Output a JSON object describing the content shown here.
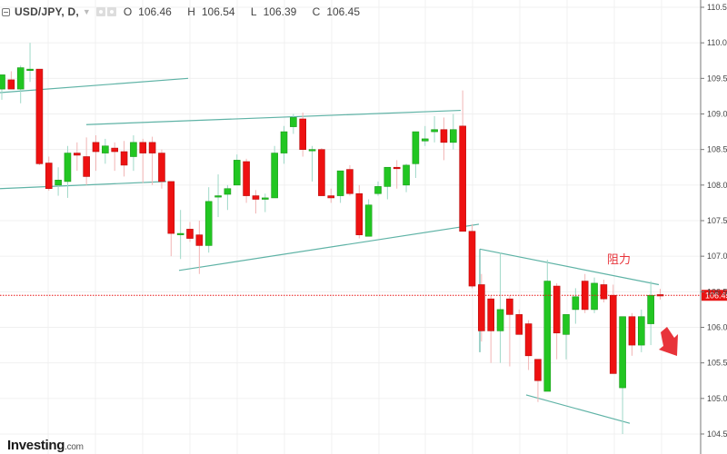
{
  "header": {
    "symbol": "USD/JPY, D,",
    "open_label": "O",
    "open": "106.46",
    "high_label": "H",
    "high": "106.54",
    "low_label": "L",
    "low": "106.39",
    "close_label": "C",
    "close": "106.45",
    "icons": [
      "collapse-icon",
      "dropdown-icon",
      "settings-icon",
      "visibility-icon"
    ]
  },
  "annotation": {
    "text": "阻力",
    "arrow": "down-right-arrow",
    "color": "#e8333a"
  },
  "logo": {
    "name": "Investing",
    "suffix": ".com"
  },
  "colors": {
    "up": "#22c622",
    "down": "#ee1111",
    "trendline": "#5fb3a6",
    "last_price": "#e81414",
    "grid": "#f0f0f0",
    "axis": "#777777"
  },
  "chart_data": {
    "type": "candlestick",
    "title": "USD/JPY, D,",
    "ylabel": "",
    "xlabel": "",
    "ylim": [
      104.5,
      110.5
    ],
    "y_ticks": [
      "110.50",
      "110.00",
      "109.50",
      "109.00",
      "108.50",
      "108.00",
      "107.50",
      "107.00",
      "106.50",
      "106.00",
      "105.50",
      "105.00",
      "104.50"
    ],
    "last_price": "106.45",
    "grid": true,
    "candles": [
      {
        "o": 109.35,
        "h": 109.55,
        "l": 109.2,
        "c": 109.55
      },
      {
        "o": 109.48,
        "h": 109.6,
        "l": 109.35,
        "c": 109.35
      },
      {
        "o": 109.35,
        "h": 109.68,
        "l": 109.15,
        "c": 109.65
      },
      {
        "o": 109.63,
        "h": 110.0,
        "l": 109.45,
        "c": 109.63
      },
      {
        "o": 109.63,
        "h": 109.63,
        "l": 108.28,
        "c": 108.3
      },
      {
        "o": 108.31,
        "h": 108.4,
        "l": 107.92,
        "c": 107.95
      },
      {
        "o": 108.0,
        "h": 108.25,
        "l": 107.85,
        "c": 108.07
      },
      {
        "o": 108.05,
        "h": 108.55,
        "l": 107.82,
        "c": 108.45
      },
      {
        "o": 108.45,
        "h": 108.6,
        "l": 108.2,
        "c": 108.42
      },
      {
        "o": 108.4,
        "h": 108.67,
        "l": 108.0,
        "c": 108.12
      },
      {
        "o": 108.6,
        "h": 108.7,
        "l": 108.2,
        "c": 108.47
      },
      {
        "o": 108.45,
        "h": 108.65,
        "l": 108.3,
        "c": 108.55
      },
      {
        "o": 108.52,
        "h": 108.6,
        "l": 108.2,
        "c": 108.47
      },
      {
        "o": 108.47,
        "h": 108.62,
        "l": 108.12,
        "c": 108.28
      },
      {
        "o": 108.4,
        "h": 108.7,
        "l": 108.2,
        "c": 108.6
      },
      {
        "o": 108.6,
        "h": 108.65,
        "l": 108.03,
        "c": 108.45
      },
      {
        "o": 108.6,
        "h": 108.68,
        "l": 108.0,
        "c": 108.45
      },
      {
        "o": 108.45,
        "h": 108.5,
        "l": 107.95,
        "c": 108.05
      },
      {
        "o": 108.05,
        "h": 107.7,
        "l": 107.0,
        "c": 107.32
      },
      {
        "o": 107.32,
        "h": 107.65,
        "l": 106.96,
        "c": 107.32
      },
      {
        "o": 107.38,
        "h": 107.48,
        "l": 107.2,
        "c": 107.25
      },
      {
        "o": 107.3,
        "h": 107.5,
        "l": 106.75,
        "c": 107.15
      },
      {
        "o": 107.15,
        "h": 107.97,
        "l": 107.05,
        "c": 107.77
      },
      {
        "o": 107.85,
        "h": 108.15,
        "l": 107.55,
        "c": 107.85
      },
      {
        "o": 107.87,
        "h": 108.0,
        "l": 107.65,
        "c": 107.95
      },
      {
        "o": 108.0,
        "h": 108.43,
        "l": 108.0,
        "c": 108.35
      },
      {
        "o": 108.33,
        "h": 108.37,
        "l": 107.75,
        "c": 107.85
      },
      {
        "o": 107.85,
        "h": 107.93,
        "l": 107.6,
        "c": 107.8
      },
      {
        "o": 107.8,
        "h": 107.88,
        "l": 107.62,
        "c": 107.82
      },
      {
        "o": 107.82,
        "h": 108.55,
        "l": 107.82,
        "c": 108.45
      },
      {
        "o": 108.45,
        "h": 108.83,
        "l": 108.3,
        "c": 108.75
      },
      {
        "o": 108.82,
        "h": 109.0,
        "l": 108.72,
        "c": 108.95
      },
      {
        "o": 108.93,
        "h": 109.02,
        "l": 108.4,
        "c": 108.5
      },
      {
        "o": 108.5,
        "h": 108.55,
        "l": 108.05,
        "c": 108.5
      },
      {
        "o": 108.5,
        "h": 108.52,
        "l": 107.9,
        "c": 107.85
      },
      {
        "o": 107.85,
        "h": 107.95,
        "l": 107.75,
        "c": 107.82
      },
      {
        "o": 107.85,
        "h": 108.2,
        "l": 107.75,
        "c": 108.2
      },
      {
        "o": 108.22,
        "h": 108.28,
        "l": 107.85,
        "c": 107.88
      },
      {
        "o": 107.88,
        "h": 108.0,
        "l": 107.25,
        "c": 107.3
      },
      {
        "o": 107.28,
        "h": 107.8,
        "l": 107.28,
        "c": 107.72
      },
      {
        "o": 107.88,
        "h": 108.05,
        "l": 107.85,
        "c": 107.98
      },
      {
        "o": 107.98,
        "h": 108.25,
        "l": 107.8,
        "c": 108.25
      },
      {
        "o": 108.25,
        "h": 108.35,
        "l": 107.95,
        "c": 108.23
      },
      {
        "o": 108.0,
        "h": 108.3,
        "l": 107.9,
        "c": 108.28
      },
      {
        "o": 108.3,
        "h": 108.75,
        "l": 108.1,
        "c": 108.75
      },
      {
        "o": 108.62,
        "h": 108.83,
        "l": 108.55,
        "c": 108.65
      },
      {
        "o": 108.75,
        "h": 108.97,
        "l": 108.6,
        "c": 108.78
      },
      {
        "o": 108.78,
        "h": 108.95,
        "l": 108.35,
        "c": 108.6
      },
      {
        "o": 108.6,
        "h": 109.0,
        "l": 108.5,
        "c": 108.78
      },
      {
        "o": 108.83,
        "h": 109.33,
        "l": 107.35,
        "c": 107.35
      },
      {
        "o": 107.35,
        "h": 107.45,
        "l": 106.55,
        "c": 106.58
      },
      {
        "o": 106.6,
        "h": 106.75,
        "l": 105.8,
        "c": 105.95
      },
      {
        "o": 106.4,
        "h": 106.45,
        "l": 105.5,
        "c": 105.95
      },
      {
        "o": 105.95,
        "h": 107.05,
        "l": 105.5,
        "c": 106.25
      },
      {
        "o": 106.4,
        "h": 106.45,
        "l": 105.45,
        "c": 106.18
      },
      {
        "o": 106.18,
        "h": 106.25,
        "l": 105.95,
        "c": 105.9
      },
      {
        "o": 106.05,
        "h": 106.1,
        "l": 105.4,
        "c": 105.6
      },
      {
        "o": 105.55,
        "h": 105.5,
        "l": 104.95,
        "c": 105.25
      },
      {
        "o": 105.1,
        "h": 106.95,
        "l": 105.1,
        "c": 106.65
      },
      {
        "o": 106.58,
        "h": 106.62,
        "l": 105.55,
        "c": 105.92
      },
      {
        "o": 105.9,
        "h": 106.18,
        "l": 105.55,
        "c": 106.18
      },
      {
        "o": 106.25,
        "h": 106.55,
        "l": 106.05,
        "c": 106.43
      },
      {
        "o": 106.65,
        "h": 106.75,
        "l": 106.2,
        "c": 106.25
      },
      {
        "o": 106.25,
        "h": 106.7,
        "l": 106.2,
        "c": 106.62
      },
      {
        "o": 106.6,
        "h": 106.67,
        "l": 106.35,
        "c": 106.4
      },
      {
        "o": 106.45,
        "h": 106.6,
        "l": 105.5,
        "c": 105.35
      },
      {
        "o": 105.15,
        "h": 106.05,
        "l": 104.5,
        "c": 106.15
      },
      {
        "o": 106.15,
        "h": 106.2,
        "l": 105.6,
        "c": 105.75
      },
      {
        "o": 105.75,
        "h": 106.25,
        "l": 105.65,
        "c": 106.15
      },
      {
        "o": 106.05,
        "h": 106.65,
        "l": 105.75,
        "c": 106.45
      },
      {
        "o": 106.46,
        "h": 106.54,
        "l": 106.39,
        "c": 106.45
      }
    ],
    "trendlines": [
      {
        "x1": 0,
        "y1": 109.3,
        "x2": 207,
        "y2": 109.5
      },
      {
        "x1": 0,
        "y1": 107.95,
        "x2": 183,
        "y2": 108.05
      },
      {
        "x1": 95,
        "y1": 108.85,
        "x2": 507,
        "y2": 109.05
      },
      {
        "x1": 197,
        "y1": 106.8,
        "x2": 527,
        "y2": 107.45
      },
      {
        "x1": 528,
        "y1": 107.1,
        "x2": 725,
        "y2": 106.6
      },
      {
        "x1": 528,
        "y1": 107.1,
        "x2": 528,
        "y2": 105.65
      },
      {
        "x1": 579,
        "y1": 105.05,
        "x2": 693,
        "y2": 104.65
      }
    ]
  }
}
